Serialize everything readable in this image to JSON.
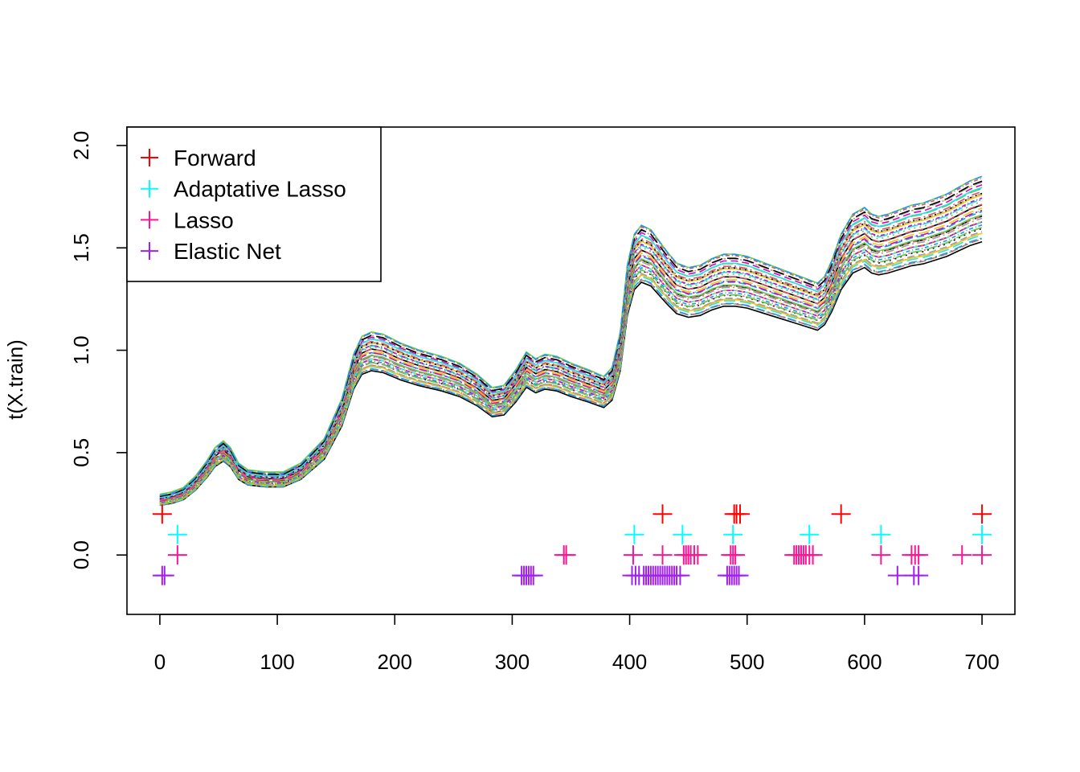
{
  "chart_data": {
    "type": "line",
    "title": "",
    "xlabel": "",
    "ylabel": "t(X.train)",
    "xlim": [
      -28,
      728
    ],
    "ylim": [
      -0.29,
      2.09
    ],
    "x_ticks": [
      0,
      100,
      200,
      300,
      400,
      500,
      600,
      700
    ],
    "y_ticks": [
      0.0,
      0.5,
      1.0,
      1.5,
      2.0
    ],
    "x_tick_labels": [
      "0",
      "100",
      "200",
      "300",
      "400",
      "500",
      "600",
      "700"
    ],
    "y_tick_labels": [
      "0.0",
      "0.5",
      "1.0",
      "1.5",
      "2.0"
    ],
    "grid": false,
    "legend_position": "top-left",
    "spectra": {
      "description_key": "matplot of training spectra",
      "x_points": [
        0,
        10,
        20,
        30,
        40,
        47,
        54,
        60,
        67,
        75,
        90,
        105,
        120,
        140,
        155,
        165,
        172,
        180,
        190,
        205,
        220,
        240,
        255,
        270,
        283,
        293,
        303,
        312,
        320,
        328,
        338,
        350,
        365,
        378,
        385,
        392,
        398,
        404,
        410,
        418,
        425,
        432,
        440,
        450,
        460,
        470,
        480,
        490,
        500,
        510,
        520,
        530,
        540,
        550,
        560,
        566,
        572,
        580,
        590,
        600,
        606,
        612,
        620,
        630,
        640,
        650,
        660,
        670,
        680,
        690,
        700
      ],
      "base_values": [
        0.27,
        0.28,
        0.3,
        0.35,
        0.42,
        0.48,
        0.51,
        0.48,
        0.41,
        0.38,
        0.37,
        0.37,
        0.41,
        0.52,
        0.7,
        0.9,
        0.98,
        1.0,
        0.99,
        0.95,
        0.92,
        0.89,
        0.86,
        0.81,
        0.75,
        0.76,
        0.83,
        0.91,
        0.88,
        0.9,
        0.89,
        0.86,
        0.83,
        0.8,
        0.84,
        1.0,
        1.3,
        1.44,
        1.48,
        1.46,
        1.41,
        1.36,
        1.31,
        1.29,
        1.3,
        1.33,
        1.35,
        1.35,
        1.34,
        1.32,
        1.3,
        1.28,
        1.26,
        1.24,
        1.22,
        1.25,
        1.32,
        1.44,
        1.53,
        1.56,
        1.53,
        1.52,
        1.53,
        1.55,
        1.57,
        1.58,
        1.6,
        1.62,
        1.65,
        1.68,
        1.7
      ],
      "curve_count": 44,
      "palette": [
        "#000000",
        "#df536b",
        "#61d04f",
        "#2297e6",
        "#28e2e5",
        "#cd0bbc",
        "#f5c710",
        "#9e9e9e"
      ]
    },
    "series": [
      {
        "name": "Forward",
        "color": "#ff0000",
        "y": 0.2,
        "x": [
          2,
          428,
          489,
          491,
          494,
          580,
          700
        ]
      },
      {
        "name": "Adaptative Lasso",
        "color": "#00ffff",
        "y": 0.1,
        "x": [
          15,
          404,
          445,
          488,
          553,
          614,
          700
        ]
      },
      {
        "name": "Lasso",
        "color": "#ff1493",
        "y": 0.0,
        "x": [
          15,
          344,
          346,
          403,
          428,
          446,
          448,
          450,
          452,
          455,
          458,
          486,
          488,
          490,
          540,
          542,
          544,
          546,
          548,
          550,
          553,
          556,
          614,
          640,
          643,
          646,
          683,
          700
        ]
      },
      {
        "name": "Elastic Net",
        "color": "#a020f0",
        "y": -0.1,
        "x": [
          2,
          4,
          308,
          310,
          312,
          314,
          316,
          318,
          402,
          405,
          408,
          412,
          414,
          416,
          418,
          420,
          422,
          424,
          426,
          428,
          430,
          432,
          434,
          436,
          438,
          440,
          443,
          483,
          485,
          487,
          489,
          491,
          493,
          628,
          642,
          646
        ]
      }
    ]
  }
}
